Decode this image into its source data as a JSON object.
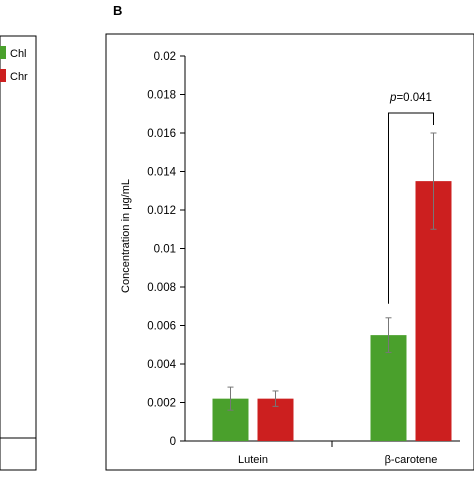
{
  "panels": {
    "left_label": "",
    "right_label": "B"
  },
  "legend": {
    "items": [
      {
        "label": "Chl",
        "color": "#4aa02c"
      },
      {
        "label": "Chr",
        "color": "#cc1f1f"
      }
    ]
  },
  "chart_data": {
    "type": "bar",
    "title": "",
    "xlabel": "",
    "ylabel": "Concentration in μg/mL",
    "ylim": [
      0,
      0.02
    ],
    "yticks": [
      "0",
      "0.002",
      "0.004",
      "0.006",
      "0.008",
      "0.01",
      "0.012",
      "0.014",
      "0.016",
      "0.018",
      "0.02"
    ],
    "categories": [
      "Lutein",
      "β-carotene"
    ],
    "series": [
      {
        "name": "Chl",
        "color": "#4aa02c",
        "values": [
          0.0022,
          0.0055
        ],
        "errors": [
          0.0006,
          0.0009
        ]
      },
      {
        "name": "Chr",
        "color": "#cc1f1f",
        "values": [
          0.0022,
          0.0135
        ],
        "errors": [
          0.0004,
          0.0025
        ]
      }
    ],
    "annotations": [
      {
        "text": "p=0.041",
        "category": "β-carotene"
      }
    ],
    "grid": false,
    "legend_position": "left panel, top-right"
  }
}
